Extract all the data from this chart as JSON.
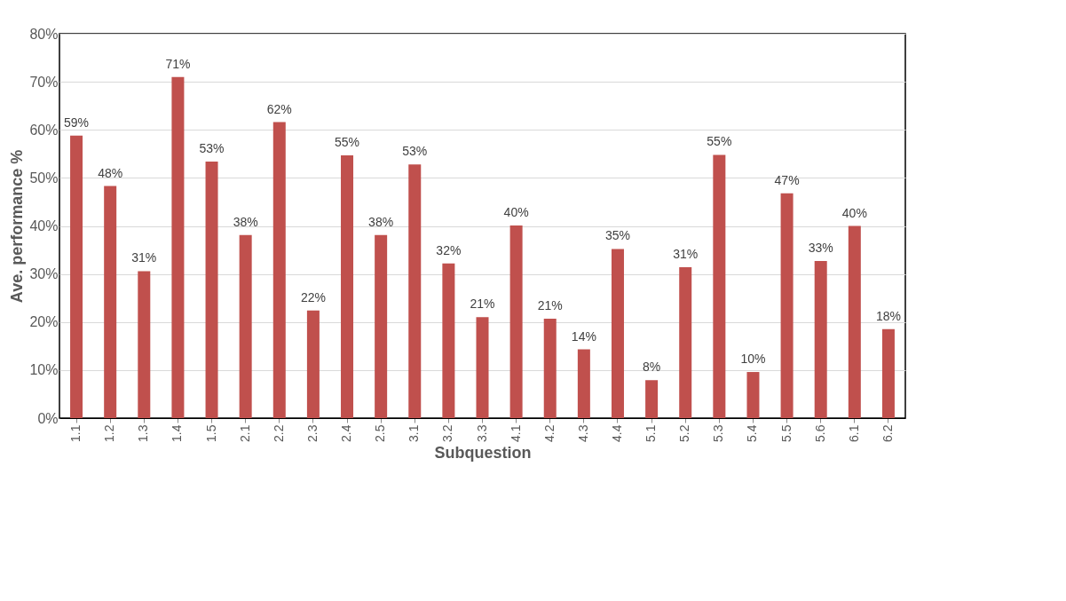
{
  "chart_data": {
    "type": "bar",
    "xlabel": "Subquestion",
    "ylabel": "Ave. performance %",
    "categories": [
      "1.1",
      "1.2",
      "1.3",
      "1.4",
      "1.5",
      "2.1",
      "2.2",
      "2.3",
      "2.4",
      "2.5",
      "3.1",
      "3.2",
      "3.3",
      "4.1",
      "4.2",
      "4.3",
      "4.4",
      "5.1",
      "5.2",
      "5.3",
      "5.4",
      "5.5",
      "5.6",
      "6.1",
      "6.2"
    ],
    "values": [
      58.8,
      48.3,
      30.6,
      71.0,
      53.4,
      38.1,
      61.6,
      22.4,
      54.7,
      38.1,
      52.8,
      32.2,
      21.0,
      40.1,
      20.7,
      14.3,
      35.2,
      7.9,
      31.4,
      54.8,
      9.6,
      46.8,
      32.7,
      40.0,
      18.5
    ],
    "value_labels": [
      "59%",
      "48%",
      "31%",
      "71%",
      "53%",
      "38%",
      "62%",
      "22%",
      "55%",
      "38%",
      "53%",
      "32%",
      "21%",
      "40%",
      "21%",
      "14%",
      "35%",
      "8%",
      "31%",
      "55%",
      "10%",
      "47%",
      "33%",
      "40%",
      "18%"
    ],
    "color": "#c0504d",
    "ylim": [
      0,
      80
    ],
    "yticks": [
      {
        "value": 0,
        "label": "0%"
      },
      {
        "value": 10,
        "label": "10%"
      },
      {
        "value": 20,
        "label": "20%"
      },
      {
        "value": 30,
        "label": "30%"
      },
      {
        "value": 40,
        "label": "40%"
      },
      {
        "value": 50,
        "label": "50%"
      },
      {
        "value": 60,
        "label": "60%"
      },
      {
        "value": 70,
        "label": "70%"
      },
      {
        "value": 80,
        "label": "80%"
      }
    ],
    "grid": "y"
  }
}
